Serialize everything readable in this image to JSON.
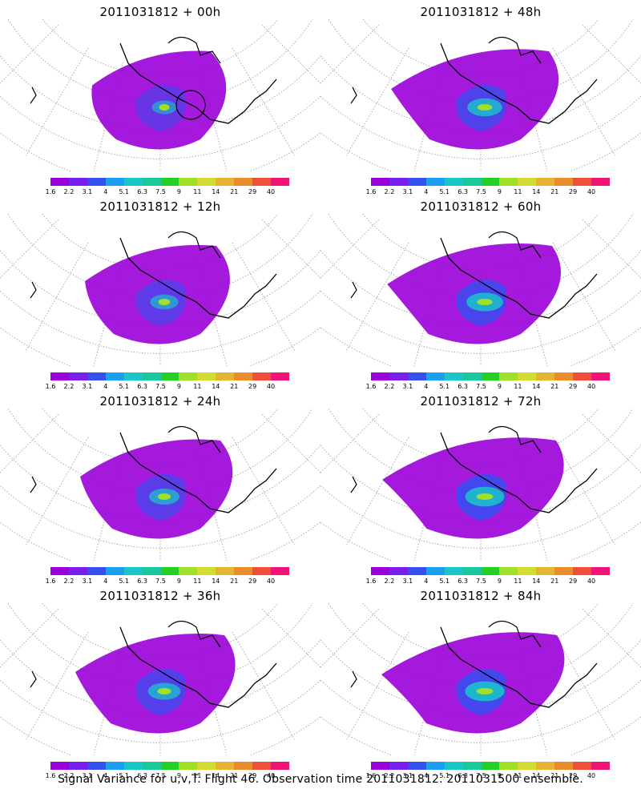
{
  "panels": [
    {
      "title": "2011031812 + 00h",
      "intensity": 0.25
    },
    {
      "title": "2011031812 + 48h",
      "intensity": 0.7
    },
    {
      "title": "2011031812 + 12h",
      "intensity": 0.4
    },
    {
      "title": "2011031812 + 60h",
      "intensity": 0.78
    },
    {
      "title": "2011031812 + 24h",
      "intensity": 0.5
    },
    {
      "title": "2011031812 + 72h",
      "intensity": 0.88
    },
    {
      "title": "2011031812 + 36h",
      "intensity": 0.6
    },
    {
      "title": "2011031812 + 84h",
      "intensity": 0.9
    }
  ],
  "colorbar": {
    "colors": [
      "#9a00d8",
      "#7a1ef0",
      "#3250f0",
      "#19a0f0",
      "#18c8c8",
      "#19c89b",
      "#24d024",
      "#9ee02a",
      "#d2dc32",
      "#e6b432",
      "#ec8c2a",
      "#f0503a",
      "#f01478"
    ],
    "labels": [
      "1.6",
      "2.2",
      "3.1",
      "4",
      "5.1",
      "6.3",
      "7.5",
      "9",
      "11",
      "14",
      "21",
      "29",
      "40"
    ]
  },
  "footer": "Signal Variance for u,v,T. Flight 46. Observation time 2011031812. 2011031500 ensemble."
}
